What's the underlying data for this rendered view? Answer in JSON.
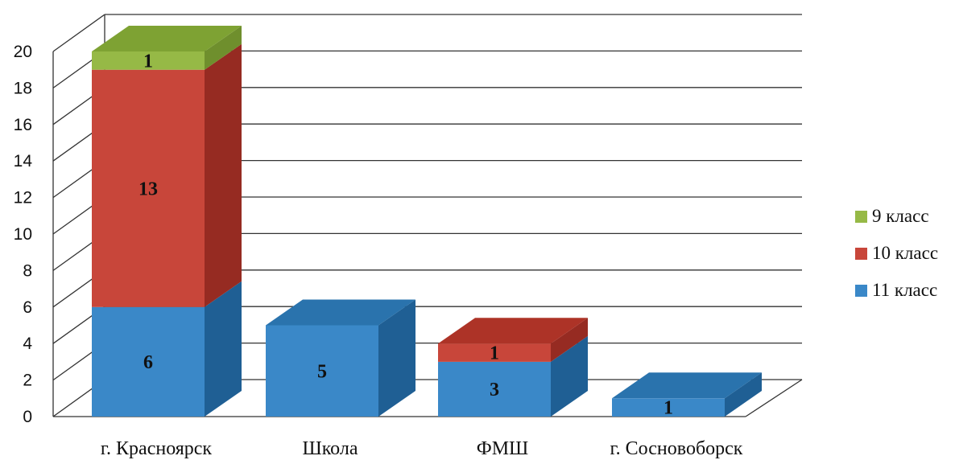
{
  "chart_data": {
    "type": "bar",
    "stacked": true,
    "three_d": true,
    "categories": [
      "г. Красноярск",
      "Школа",
      "ФМШ",
      "г. Сосновоборск"
    ],
    "series": [
      {
        "name": "11 класс",
        "values": [
          6,
          5,
          3,
          1
        ],
        "color": "#3a88c8",
        "side_color": "#1f5f94",
        "top_color": "#2a73ad"
      },
      {
        "name": "10 класс",
        "values": [
          13,
          0,
          1,
          0
        ],
        "color": "#c8463a",
        "side_color": "#962b22",
        "top_color": "#ad3327"
      },
      {
        "name": "9 класс",
        "values": [
          1,
          0,
          0,
          0
        ],
        "color": "#96b946",
        "side_color": "#6f8f2d",
        "top_color": "#7ea233"
      }
    ],
    "yticks": [
      0,
      2,
      4,
      6,
      8,
      10,
      12,
      14,
      16,
      18,
      20
    ],
    "ylim": [
      0,
      20
    ],
    "grid": true,
    "legend_position": "right",
    "data_labels": true
  }
}
